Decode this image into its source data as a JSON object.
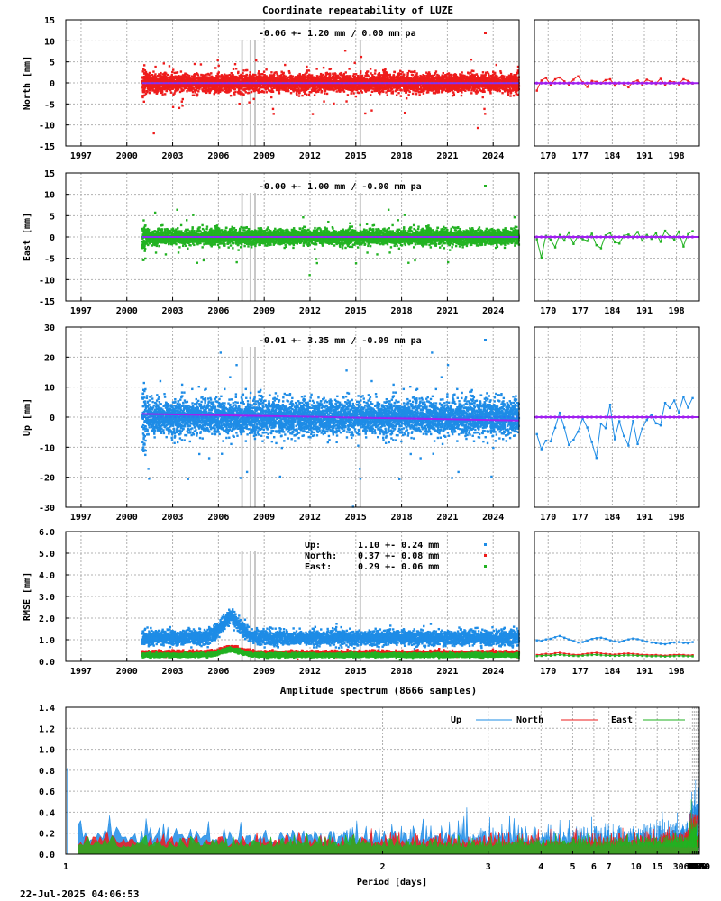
{
  "timestamp": "22-Jul-2025 04:06:53",
  "colors": {
    "up": "#1e8ce6",
    "north": "#ee1c1c",
    "east": "#22b222",
    "model": "#a020f0",
    "grid": "#b0b0b0",
    "outage": "#c8c8c8"
  },
  "chart_data": [
    {
      "type": "scatter",
      "title": "Coordinate repeatability of LUZE",
      "ylabel": "North [mm]",
      "annotation": "-0.06 +- 1.20 mm /  0.00 mm pa",
      "ylim": [
        -15,
        15
      ],
      "yticks": [
        -15,
        -10,
        -5,
        0,
        5,
        10,
        15
      ],
      "xlim": [
        1996,
        2025.7
      ],
      "xticks": [
        "1997",
        "2000",
        "2003",
        "2006",
        "2009",
        "2012",
        "2015",
        "2018",
        "2021",
        "2024"
      ],
      "data_start": 2001.0,
      "scatter_sd": 1.2,
      "trend": {
        "value": -0.06,
        "rate_per_year": 0.0
      },
      "series": [
        {
          "name": "",
          "color": "north"
        }
      ],
      "recent": {
        "type": "line",
        "xlim": [
          167,
          203
        ],
        "xticks": [
          "170",
          "177",
          "184",
          "191",
          "198"
        ],
        "values": [
          -1.8,
          0.6,
          1.2,
          -0.4,
          0.9,
          1.3,
          0.4,
          -0.5,
          0.8,
          1.6,
          0.2,
          -0.9,
          0.5,
          0.3,
          -0.1,
          0.7,
          0.9,
          -0.6,
          0.1,
          -0.3,
          -1.0,
          0.2,
          0.6,
          -0.4,
          0.8,
          0.3,
          -0.2,
          1.0,
          -0.5,
          0.4,
          0.2,
          -0.3,
          0.9,
          0.5,
          -0.1
        ]
      }
    },
    {
      "type": "scatter",
      "ylabel": "East [mm]",
      "annotation": "-0.00 +- 1.00 mm / -0.00 mm pa",
      "ylim": [
        -15,
        15
      ],
      "yticks": [
        -15,
        -10,
        -5,
        0,
        5,
        10,
        15
      ],
      "xlim": [
        1996,
        2025.7
      ],
      "xticks": [
        "1997",
        "2000",
        "2003",
        "2006",
        "2009",
        "2012",
        "2015",
        "2018",
        "2021",
        "2024"
      ],
      "data_start": 2001.0,
      "scatter_sd": 1.0,
      "trend": {
        "value": 0.0,
        "rate_per_year": 0.0
      },
      "series": [
        {
          "name": "",
          "color": "east"
        }
      ],
      "recent": {
        "type": "line",
        "xlim": [
          167,
          203
        ],
        "xticks": [
          "170",
          "177",
          "184",
          "191",
          "198"
        ],
        "values": [
          -0.5,
          -4.8,
          0.3,
          -0.6,
          -2.4,
          0.5,
          -0.8,
          1.1,
          -1.6,
          0.2,
          -0.5,
          -0.9,
          0.8,
          -1.9,
          -2.6,
          0.4,
          1.0,
          -1.2,
          -1.5,
          0.3,
          0.6,
          -0.2,
          1.2,
          -0.8,
          0.5,
          -0.4,
          0.9,
          -1.1,
          1.5,
          0.2,
          -0.6,
          1.3,
          -2.2,
          0.7,
          1.4
        ]
      }
    },
    {
      "type": "scatter",
      "ylabel": "Up [mm]",
      "annotation": "-0.01 +- 3.35 mm / -0.09 mm pa",
      "ylim": [
        -30,
        30
      ],
      "yticks": [
        -30,
        -20,
        -10,
        0,
        10,
        20,
        30
      ],
      "xlim": [
        1996,
        2025.7
      ],
      "xticks": [
        "1997",
        "2000",
        "2003",
        "2006",
        "2009",
        "2012",
        "2015",
        "2018",
        "2021",
        "2024"
      ],
      "data_start": 2001.0,
      "scatter_sd": 3.35,
      "trend": {
        "value": -0.01,
        "rate_per_year": -0.09
      },
      "series": [
        {
          "name": "",
          "color": "up"
        }
      ],
      "recent": {
        "type": "line",
        "xlim": [
          167,
          203
        ],
        "xticks": [
          "170",
          "177",
          "184",
          "191",
          "198"
        ],
        "values": [
          -5.6,
          -10.6,
          -7.8,
          -8.0,
          -3.5,
          1.5,
          -3.4,
          -9.2,
          -7.5,
          -4.8,
          -0.4,
          -3.4,
          -8.2,
          -13.5,
          -2.1,
          -3.6,
          4.2,
          -7.3,
          -1.3,
          -6.2,
          -9.4,
          -1.2,
          -8.9,
          -3.8,
          -0.9,
          0.9,
          -2.0,
          -2.7,
          4.8,
          3.1,
          5.6,
          1.5,
          6.8,
          3.2,
          6.4
        ]
      }
    },
    {
      "type": "scatter",
      "ylabel": "RMSE [mm]",
      "ylim": [
        0,
        6
      ],
      "yticks": [
        "0.0",
        "1.0",
        "2.0",
        "3.0",
        "4.0",
        "5.0",
        "6.0"
      ],
      "xlim": [
        1996,
        2025.7
      ],
      "xticks": [
        "1997",
        "2000",
        "2003",
        "2006",
        "2009",
        "2012",
        "2015",
        "2018",
        "2021",
        "2024"
      ],
      "data_start": 2001.0,
      "series": [
        {
          "name": "Up:",
          "color": "up",
          "stats": "1.10 +- 0.24 mm",
          "mean": 1.1,
          "sd": 0.24
        },
        {
          "name": "North:",
          "color": "north",
          "stats": "0.37 +- 0.08 mm",
          "mean": 0.37,
          "sd": 0.08
        },
        {
          "name": "East:",
          "color": "east",
          "stats": "0.29 +- 0.06 mm",
          "mean": 0.29,
          "sd": 0.06
        }
      ],
      "recent": {
        "type": "line",
        "xlim": [
          167,
          203
        ],
        "xticks": [
          "170",
          "177",
          "184",
          "191",
          "198"
        ],
        "up": [
          0.98,
          0.95,
          1.02,
          1.05,
          1.12,
          1.18,
          1.1,
          1.02,
          0.95,
          0.88,
          0.9,
          0.97,
          1.04,
          1.08,
          1.1,
          1.05,
          0.98,
          0.93,
          0.9,
          0.96,
          1.02,
          1.06,
          1.03,
          0.98,
          0.92,
          0.88,
          0.85,
          0.82,
          0.8,
          0.84,
          0.88,
          0.9,
          0.86,
          0.84,
          0.9
        ],
        "north": [
          0.3,
          0.32,
          0.35,
          0.33,
          0.38,
          0.4,
          0.36,
          0.34,
          0.31,
          0.3,
          0.33,
          0.36,
          0.38,
          0.4,
          0.37,
          0.35,
          0.33,
          0.32,
          0.34,
          0.36,
          0.37,
          0.35,
          0.33,
          0.31,
          0.3,
          0.29,
          0.3,
          0.28,
          0.27,
          0.29,
          0.3,
          0.31,
          0.3,
          0.28,
          0.29
        ],
        "east": [
          0.25,
          0.26,
          0.28,
          0.27,
          0.3,
          0.31,
          0.29,
          0.27,
          0.26,
          0.25,
          0.27,
          0.29,
          0.3,
          0.31,
          0.29,
          0.28,
          0.27,
          0.26,
          0.27,
          0.28,
          0.29,
          0.28,
          0.27,
          0.26,
          0.25,
          0.24,
          0.25,
          0.24,
          0.23,
          0.24,
          0.25,
          0.26,
          0.25,
          0.24,
          0.24
        ]
      }
    },
    {
      "type": "line",
      "title": "Amplitude spectrum (8666 samples)",
      "xlabel": "Period [days]",
      "x_scale": "reciprocal",
      "xlim": [
        1,
        8760
      ],
      "ylim": [
        0,
        1.4
      ],
      "yticks": [
        "0.0",
        "0.2",
        "0.4",
        "0.6",
        "0.8",
        "1.0",
        "1.2",
        "1.4"
      ],
      "xticks": [
        {
          "period": 1,
          "label": "1"
        },
        {
          "period": 2,
          "label": "2"
        },
        {
          "period": 3,
          "label": "3"
        },
        {
          "period": 4,
          "label": "4"
        },
        {
          "period": 5,
          "label": "5"
        },
        {
          "period": 6,
          "label": "6"
        },
        {
          "period": 7,
          "label": "7"
        },
        {
          "period": 10,
          "label": "10"
        },
        {
          "period": 15,
          "label": "15"
        },
        {
          "period": 30,
          "label": "30"
        },
        {
          "period": 61,
          "label": "61"
        },
        {
          "period": 91,
          "label": "91"
        },
        {
          "period": 122,
          "label": "122"
        },
        {
          "period": 183,
          "label": "183"
        },
        {
          "period": 365,
          "label": "365"
        },
        {
          "period": 730,
          "label": "730"
        },
        {
          "period": 2190,
          "label": "2190"
        },
        {
          "period": 4380,
          "label": "4380"
        },
        {
          "period": 8760,
          "label": "8760"
        }
      ],
      "series": [
        {
          "name": "Up",
          "color": "up",
          "points": [
            [
              8760,
              0.81
            ],
            [
              4380,
              0.48
            ],
            [
              2920,
              0.32
            ],
            [
              2190,
              0.55
            ],
            [
              1752,
              0.42
            ],
            [
              1460,
              0.28
            ],
            [
              1251,
              0.63
            ],
            [
              1095,
              0.35
            ],
            [
              973,
              0.45
            ],
            [
              876,
              0.42
            ],
            [
              730,
              0.5
            ],
            [
              626,
              0.33
            ],
            [
              548,
              0.4
            ],
            [
              487,
              0.22
            ],
            [
              438,
              0.28
            ],
            [
              365,
              0.33
            ],
            [
              313,
              0.17
            ],
            [
              274,
              0.2
            ]
          ]
        },
        {
          "name": "North",
          "color": "north",
          "points": [
            [
              8760,
              0.35
            ],
            [
              4380,
              0.43
            ],
            [
              2920,
              0.28
            ],
            [
              2190,
              0.14
            ],
            [
              1460,
              0.16
            ],
            [
              1095,
              0.12
            ],
            [
              876,
              0.18
            ],
            [
              730,
              0.13
            ],
            [
              548,
              0.1
            ],
            [
              438,
              0.16
            ],
            [
              365,
              0.08
            ],
            [
              313,
              0.14
            ],
            [
              274,
              0.07
            ]
          ]
        },
        {
          "name": "East",
          "color": "east",
          "points": [
            [
              8760,
              0.26
            ],
            [
              4380,
              0.18
            ],
            [
              2920,
              0.14
            ],
            [
              2190,
              0.12
            ],
            [
              1752,
              0.15
            ],
            [
              1460,
              0.13
            ],
            [
              1095,
              0.08
            ],
            [
              876,
              0.11
            ],
            [
              730,
              0.06
            ],
            [
              548,
              0.09
            ],
            [
              438,
              0.05
            ],
            [
              365,
              0.12
            ],
            [
              313,
              0.04
            ],
            [
              274,
              0.05
            ]
          ]
        }
      ],
      "peak": {
        "period": 1,
        "value": 0.82
      }
    }
  ]
}
